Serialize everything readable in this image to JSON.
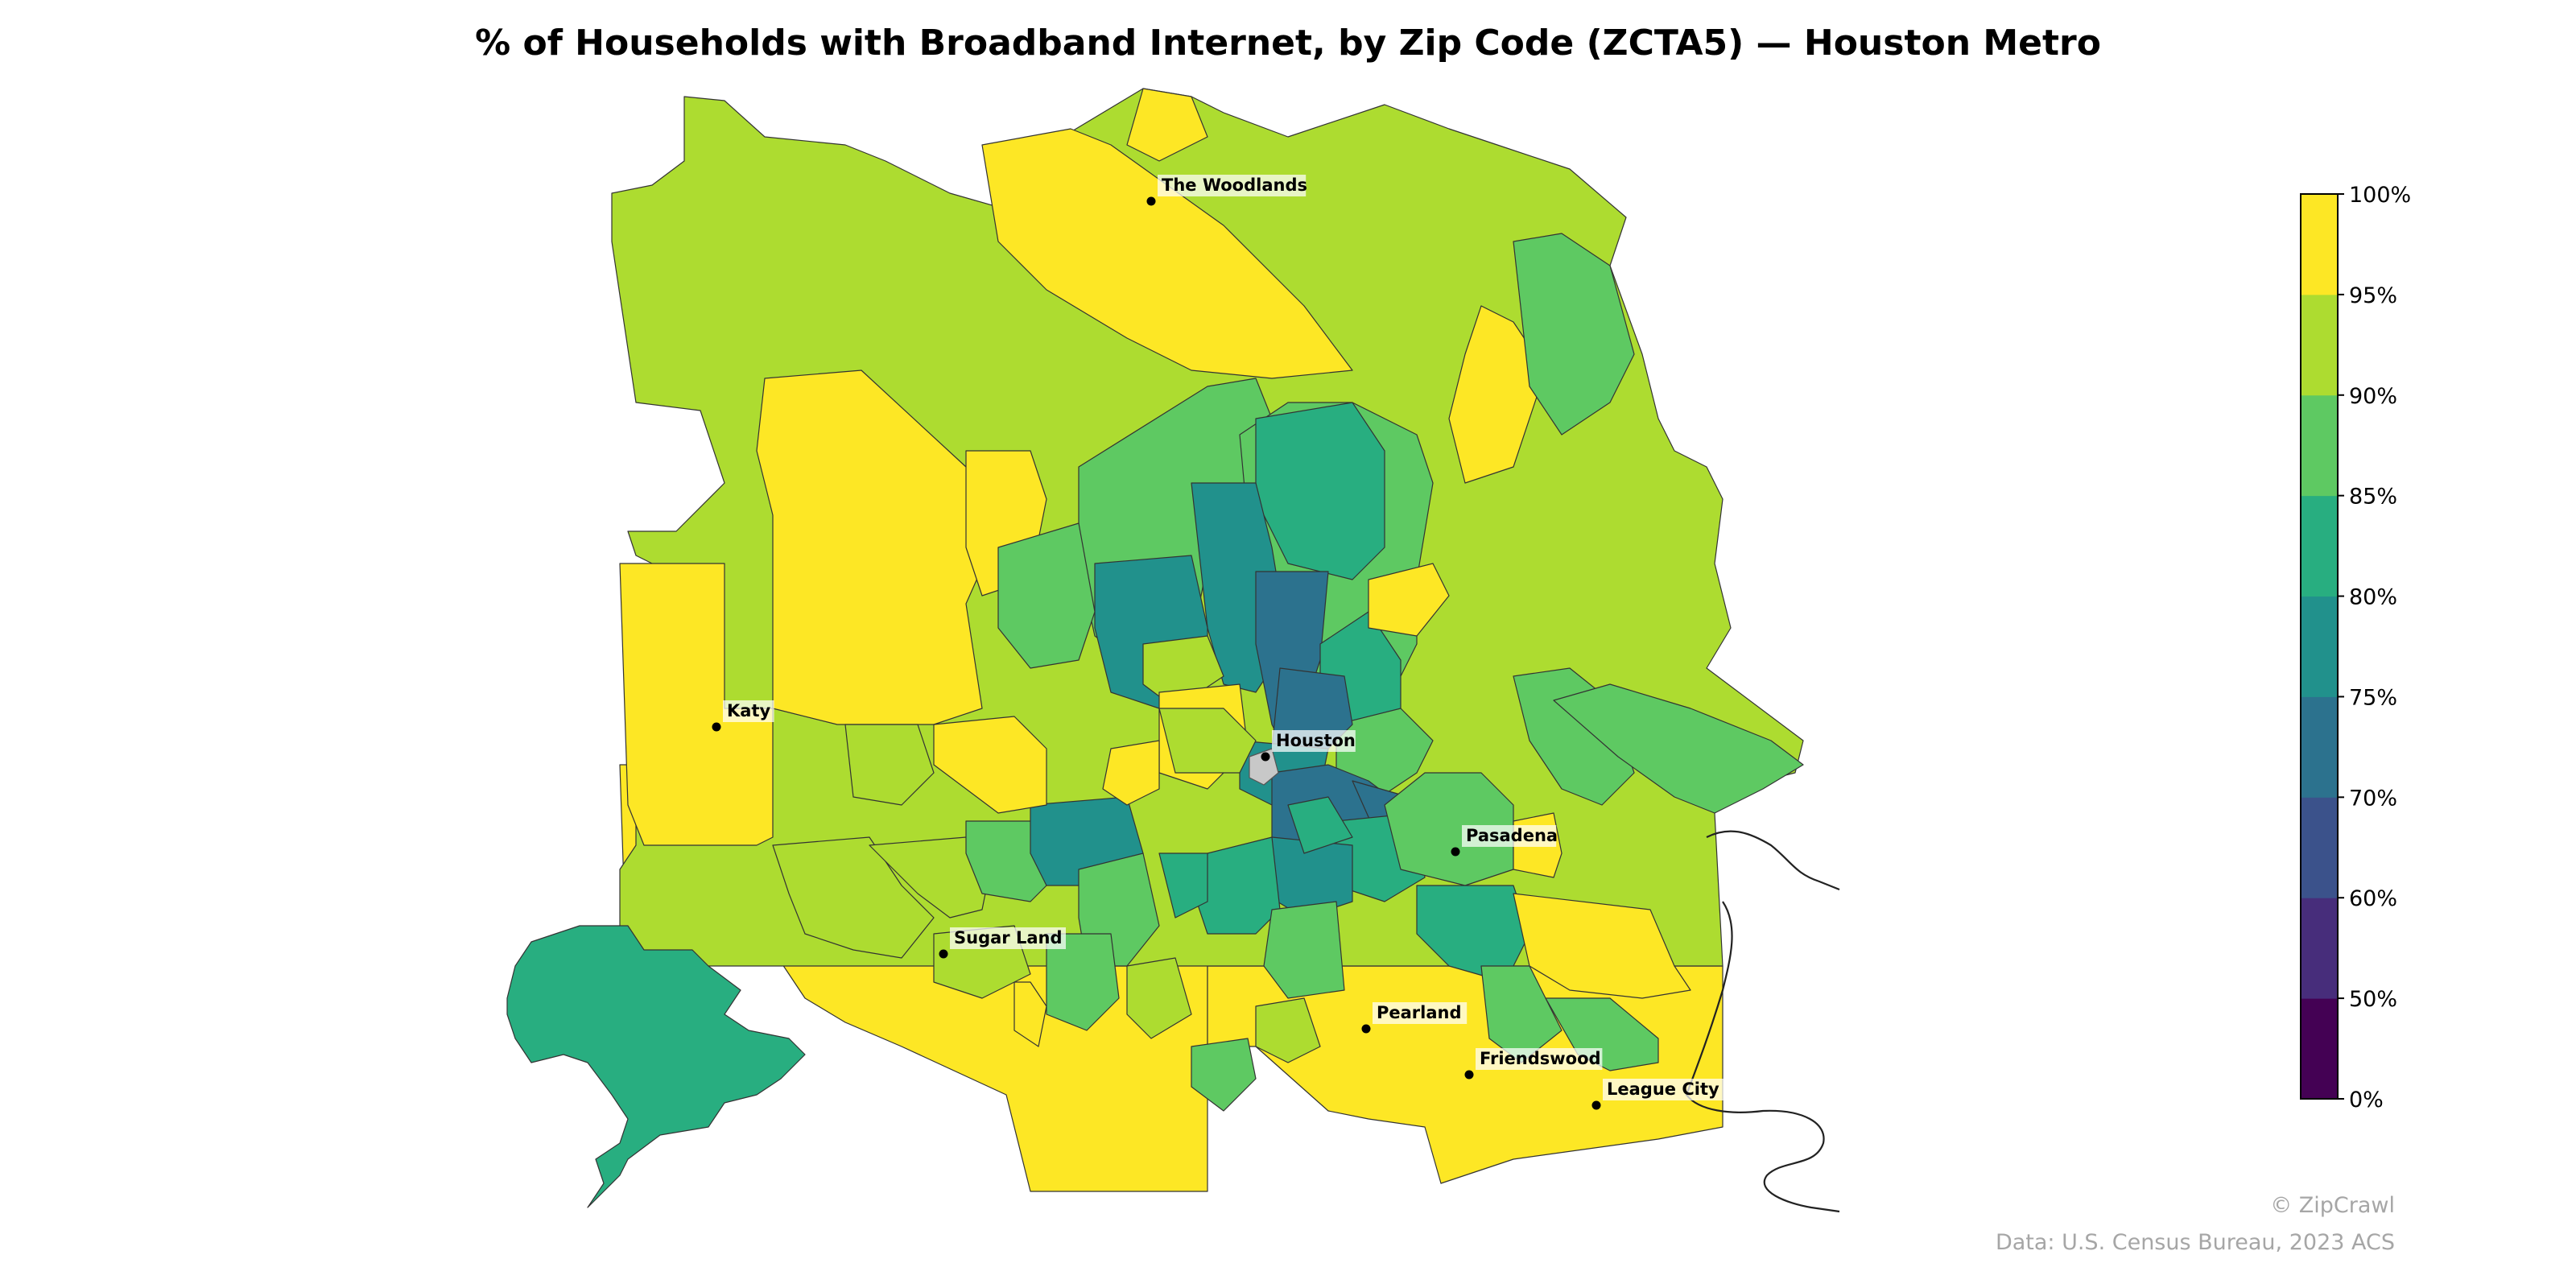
{
  "title": "% of Households with Broadband Internet, by Zip Code (ZCTA5) — Houston Metro",
  "colors": {
    "yellow": "#fde725",
    "lime": "#addc30",
    "green": "#5ec962",
    "teal_green": "#28ae80",
    "teal": "#21918c",
    "blue_teal": "#2c728e",
    "blue": "#3b528b",
    "indigo": "#472d7b",
    "purple": "#440154",
    "no_data": "#c8c8c8"
  },
  "legend": {
    "type": "colorbar",
    "ticks": [
      "0%",
      "50%",
      "60%",
      "70%",
      "75%",
      "80%",
      "85%",
      "90%",
      "95%",
      "100%"
    ],
    "bins": [
      {
        "from": 0,
        "to": 50,
        "color": "#440154"
      },
      {
        "from": 50,
        "to": 60,
        "color": "#472d7b"
      },
      {
        "from": 60,
        "to": 70,
        "color": "#3b528b"
      },
      {
        "from": 70,
        "to": 75,
        "color": "#2c728e"
      },
      {
        "from": 75,
        "to": 80,
        "color": "#21918c"
      },
      {
        "from": 80,
        "to": 85,
        "color": "#28ae80"
      },
      {
        "from": 85,
        "to": 90,
        "color": "#5ec962"
      },
      {
        "from": 90,
        "to": 95,
        "color": "#addc30"
      },
      {
        "from": 95,
        "to": 100,
        "color": "#fde725"
      }
    ]
  },
  "cities": [
    {
      "name": "The Woodlands"
    },
    {
      "name": "Katy"
    },
    {
      "name": "Houston"
    },
    {
      "name": "Pasadena"
    },
    {
      "name": "Sugar Land"
    },
    {
      "name": "Pearland"
    },
    {
      "name": "Friendswood"
    },
    {
      "name": "League City"
    }
  ],
  "credits": {
    "copyright": "© ZipCrawl",
    "source": "Data: U.S. Census Bureau, 2023 ACS"
  }
}
